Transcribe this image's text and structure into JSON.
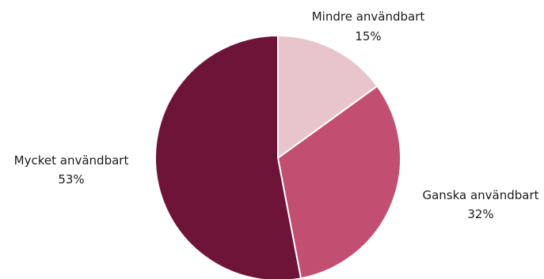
{
  "chart_data": {
    "type": "pie",
    "slices": [
      {
        "label": "Mindre användbart",
        "value": 15,
        "value_label": "15%",
        "color": "#e8c5cd"
      },
      {
        "label": "Ganska användbart",
        "value": 32,
        "value_label": "32%",
        "color": "#c24e72"
      },
      {
        "label": "Mycket användbart",
        "value": 53,
        "value_label": "53%",
        "color": "#6d1438"
      }
    ],
    "start_angle": "12 o'clock",
    "direction": "clockwise",
    "legend": "none"
  }
}
